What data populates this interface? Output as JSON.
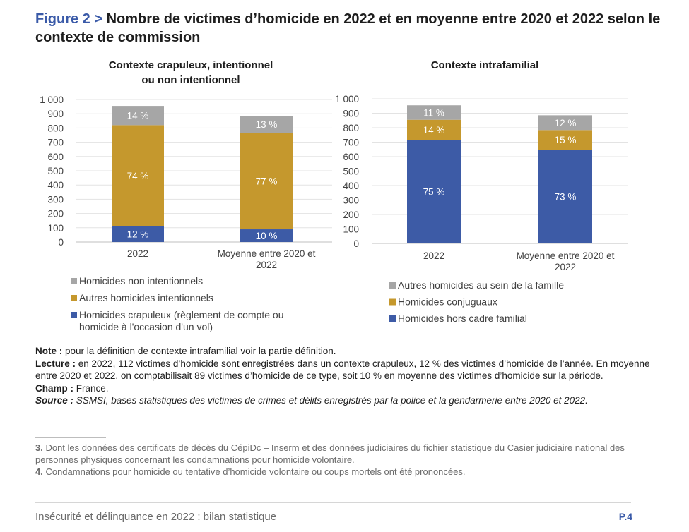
{
  "figure": {
    "label": "Figure 2 >",
    "title": "Nombre de victimes d’homicide en 2022 et en moyenne entre 2020 et 2022 selon le contexte de commission"
  },
  "chart_data": [
    {
      "type": "bar",
      "stacked": true,
      "title_lines": [
        "Contexte crapuleux, intentionnel",
        "ou non intentionnel"
      ],
      "categories": [
        [
          "2022"
        ],
        [
          "Moyenne entre 2020 et",
          "2022"
        ]
      ],
      "yticks": [
        "0",
        "100",
        "200",
        "300",
        "400",
        "500",
        "600",
        "700",
        "800",
        "900",
        "1 000"
      ],
      "ylim": [
        0,
        1000
      ],
      "grid": true,
      "legend_position": "bottom",
      "series": [
        {
          "name": "Homicides crapuleux (règlement de compte ou homicide à l'occasion d'un vol)",
          "legend_lines": [
            "Homicides crapuleux (règlement de compte ou",
            "homicide à l'occasion d'un vol)"
          ],
          "color": "#3d5ba6",
          "values": [
            112,
            89
          ],
          "labels": [
            "12 %",
            "10 %"
          ]
        },
        {
          "name": "Autres homicides intentionnels",
          "legend_lines": [
            "Autres homicides intentionnels"
          ],
          "color": "#c5982d",
          "values": [
            708,
            678
          ],
          "labels": [
            "74 %",
            "77 %"
          ]
        },
        {
          "name": "Homicides non intentionnels",
          "legend_lines": [
            "Homicides non intentionnels"
          ],
          "color": "#a6a6a6",
          "values": [
            135,
            118
          ],
          "labels": [
            "14 %",
            "13 %"
          ]
        }
      ]
    },
    {
      "type": "bar",
      "stacked": true,
      "title_lines": [
        "Contexte intrafamilial"
      ],
      "categories": [
        [
          "2022"
        ],
        [
          "Moyenne entre 2020 et",
          "2022"
        ]
      ],
      "yticks": [
        "0",
        "100",
        "200",
        "300",
        "400",
        "500",
        "600",
        "700",
        "800",
        "900",
        "1 000"
      ],
      "ylim": [
        0,
        1000
      ],
      "grid": true,
      "legend_position": "bottom",
      "series": [
        {
          "name": "Homicides hors cadre familial",
          "legend_lines": [
            "Homicides hors cadre familial"
          ],
          "color": "#3d5ba6",
          "values": [
            717,
            648
          ],
          "labels": [
            "75 %",
            "73 %"
          ]
        },
        {
          "name": "Homicides conjuguaux",
          "legend_lines": [
            "Homicides conjuguaux"
          ],
          "color": "#c5982d",
          "values": [
            138,
            136
          ],
          "labels": [
            "14 %",
            "15 %"
          ]
        },
        {
          "name": "Autres homicides au sein de la famille",
          "legend_lines": [
            "Autres homicides au sein de la famille"
          ],
          "color": "#a6a6a6",
          "values": [
            100,
            102
          ],
          "labels": [
            "11 %",
            "12 %"
          ]
        }
      ]
    }
  ],
  "notes": {
    "note_label": "Note :",
    "note_text": " pour la définition de contexte intrafamilial voir la partie définition.",
    "lecture_label": "Lecture :",
    "lecture_text": " en 2022, 112 victimes d’homicide sont enregistrées dans un contexte crapuleux, 12 % des victimes d’homicide de l’année. En moyenne entre 2020 et 2022, on comptabilisait 89 victimes d’homicide de ce type, soit 10 % en moyenne des victimes d’homicide sur la période.",
    "champ_label": "Champ :",
    "champ_text": " France.",
    "source_label": "Source :",
    "source_text": " SSMSI, bases statistiques des victimes de crimes et délits enregistrés par la police et la gendarmerie entre 2020 et 2022."
  },
  "footnotes": [
    {
      "num": "3.",
      "text": " Dont les données des certificats de décès du CépiDc – Inserm et des données judiciaires du fichier statistique du Casier judiciaire national des personnes physiques concernant les condamnations pour homicide volontaire."
    },
    {
      "num": "4.",
      "text": " Condamnations pour homicide ou tentative d’homicide volontaire ou coups mortels ont été prononcées."
    }
  ],
  "footer": {
    "left": "Insécurité et délinquance en 2022 : bilan statistique",
    "right": "P.4"
  }
}
